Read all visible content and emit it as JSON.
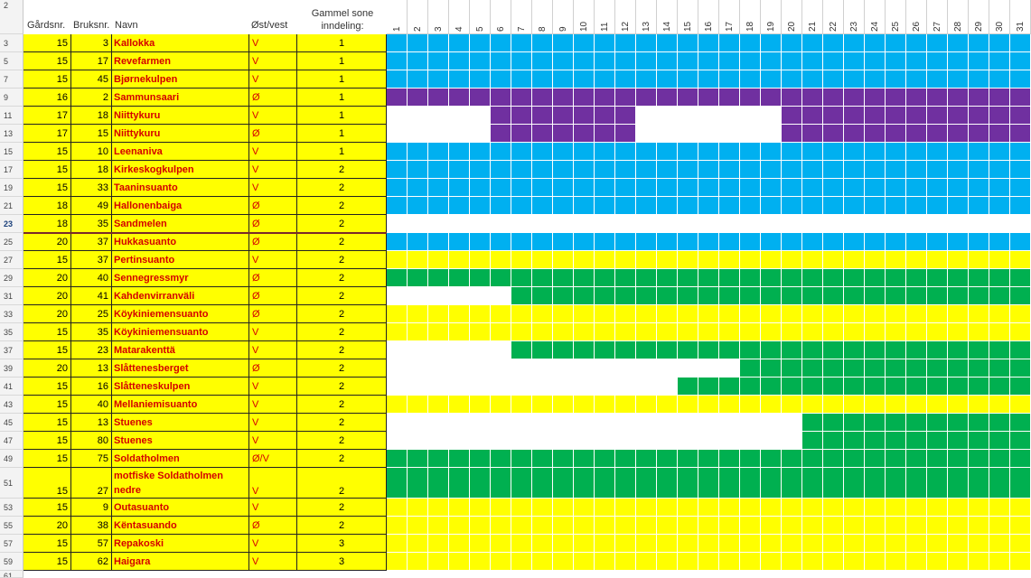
{
  "columns": {
    "farm_no": "Gårdsnr.",
    "use_no": "Bruksnr.",
    "name": "Navn",
    "east_west": "Øst/vest",
    "old_zone": "Gammel sone inndeling:"
  },
  "colors": {
    "yellow": "#ffff00",
    "blue": "#00b0f0",
    "purple": "#7030a0",
    "green": "#00b050",
    "white": "#ffffff"
  },
  "days": [
    "1",
    "2",
    "3",
    "4",
    "5",
    "6",
    "7",
    "8",
    "9",
    "10",
    "11",
    "12",
    "13",
    "14",
    "15",
    "16",
    "17",
    "18",
    "19",
    "20",
    "21",
    "22",
    "23",
    "24",
    "25",
    "26",
    "27",
    "28",
    "29",
    "30",
    "31"
  ],
  "top_row_number": "2",
  "rows": [
    {
      "row": "3",
      "farm": "15",
      "use": "3",
      "name": "Kallokka",
      "ov": "V",
      "zone": "1",
      "color": "blue",
      "from": 1,
      "to": 31
    },
    {
      "row": "5",
      "farm": "15",
      "use": "17",
      "name": "Revefarmen",
      "ov": "V",
      "zone": "1",
      "color": "blue",
      "from": 1,
      "to": 31
    },
    {
      "row": "7",
      "farm": "15",
      "use": "45",
      "name": "Bjørnekulpen",
      "ov": "V",
      "zone": "1",
      "color": "blue",
      "from": 1,
      "to": 31
    },
    {
      "row": "9",
      "farm": "16",
      "use": "2",
      "name": "Sammunsaari",
      "ov": "Ø",
      "zone": "1",
      "color": "purple",
      "from": 1,
      "to": 31
    },
    {
      "row": "11",
      "farm": "17",
      "use": "18",
      "name": "Niittykuru",
      "ov": "V",
      "zone": "1",
      "color": "purple",
      "ranges": [
        [
          6,
          12
        ],
        [
          20,
          31
        ]
      ]
    },
    {
      "row": "13",
      "farm": "17",
      "use": "15",
      "name": "Niittykuru",
      "ov": "Ø",
      "zone": "1",
      "color": "purple",
      "ranges": [
        [
          6,
          12
        ],
        [
          20,
          31
        ]
      ]
    },
    {
      "row": "15",
      "farm": "15",
      "use": "10",
      "name": "Leenaniva",
      "ov": "V",
      "zone": "1",
      "color": "blue",
      "from": 1,
      "to": 31
    },
    {
      "row": "17",
      "farm": "15",
      "use": "18",
      "name": "Kirkeskogkulpen",
      "ov": "V",
      "zone": "2",
      "color": "blue",
      "from": 1,
      "to": 31
    },
    {
      "row": "19",
      "farm": "15",
      "use": "33",
      "name": "Taaninsuanto",
      "ov": "V",
      "zone": "2",
      "color": "blue",
      "from": 1,
      "to": 31
    },
    {
      "row": "21",
      "farm": "18",
      "use": "49",
      "name": "Hallonenbaiga",
      "ov": "Ø",
      "zone": "2",
      "color": "blue",
      "from": 1,
      "to": 31
    },
    {
      "row": "23",
      "farm": "18",
      "use": "35",
      "name": "Sandmelen",
      "ov": "Ø",
      "zone": "2",
      "color": "white",
      "from": 1,
      "to": 31,
      "selected": true
    },
    {
      "row": "25",
      "farm": "20",
      "use": "37",
      "name": "Hukkasuanto",
      "ov": "Ø",
      "zone": "2",
      "color": "blue",
      "from": 1,
      "to": 31
    },
    {
      "row": "27",
      "farm": "15",
      "use": "37",
      "name": "Pertinsuanto",
      "ov": "V",
      "zone": "2",
      "color": "yellow",
      "from": 1,
      "to": 31
    },
    {
      "row": "29",
      "farm": "20",
      "use": "40",
      "name": "Sennegressmyr",
      "ov": "Ø",
      "zone": "2",
      "color": "green",
      "from": 1,
      "to": 31
    },
    {
      "row": "31",
      "farm": "20",
      "use": "41",
      "name": "Kahdenvirranväli",
      "ov": "Ø",
      "zone": "2",
      "color": "green",
      "from": 7,
      "to": 31
    },
    {
      "row": "33",
      "farm": "20",
      "use": "25",
      "name": "Köykiniemensuanto",
      "ov": "Ø",
      "zone": "2",
      "color": "yellow",
      "from": 1,
      "to": 31
    },
    {
      "row": "35",
      "farm": "15",
      "use": "35",
      "name": "Köykiniemensuanto",
      "ov": "V",
      "zone": "2",
      "color": "yellow",
      "from": 1,
      "to": 31
    },
    {
      "row": "37",
      "farm": "15",
      "use": "23",
      "name": "Matarakenttä",
      "ov": "V",
      "zone": "2",
      "color": "green",
      "from": 7,
      "to": 31
    },
    {
      "row": "39",
      "farm": "20",
      "use": "13",
      "name": "Slåttenesberget",
      "ov": "Ø",
      "zone": "2",
      "color": "green",
      "from": 18,
      "to": 31
    },
    {
      "row": "41",
      "farm": "15",
      "use": "16",
      "name": "Slåtteneskulpen",
      "ov": "V",
      "zone": "2",
      "color": "green",
      "from": 15,
      "to": 31
    },
    {
      "row": "43",
      "farm": "15",
      "use": "40",
      "name": "Mellaniemisuanto",
      "ov": "V",
      "zone": "2",
      "color": "yellow",
      "from": 1,
      "to": 31
    },
    {
      "row": "45",
      "farm": "15",
      "use": "13",
      "name": "Stuenes",
      "ov": "V",
      "zone": "2",
      "color": "green",
      "from": 21,
      "to": 31
    },
    {
      "row": "47",
      "farm": "15",
      "use": "80",
      "name": "Stuenes",
      "ov": "V",
      "zone": "2",
      "color": "green",
      "from": 21,
      "to": 31
    },
    {
      "row": "49",
      "farm": "15",
      "use": "75",
      "name": "Soldatholmen",
      "ov": "Ø/V",
      "zone": "2",
      "color": "green",
      "from": 1,
      "to": 31
    },
    {
      "row": "51",
      "farm": "15",
      "use": "27",
      "name": "motfiske Soldatholmen nedre",
      "ov": "V",
      "zone": "2",
      "color": "green",
      "from": 1,
      "to": 31,
      "tall": true
    },
    {
      "row": "53",
      "farm": "15",
      "use": "9",
      "name": "Outasuanto",
      "ov": "V",
      "zone": "2",
      "color": "yellow",
      "from": 1,
      "to": 31
    },
    {
      "row": "55",
      "farm": "20",
      "use": "38",
      "name": "Kёntasuando",
      "ov": "Ø",
      "zone": "2",
      "color": "yellow",
      "from": 1,
      "to": 31
    },
    {
      "row": "57",
      "farm": "15",
      "use": "57",
      "name": "Repakoski",
      "ov": "V",
      "zone": "3",
      "color": "yellow",
      "from": 1,
      "to": 31
    },
    {
      "row": "59",
      "farm": "15",
      "use": "62",
      "name": "Haigara",
      "ov": "V",
      "zone": "3",
      "color": "yellow",
      "from": 1,
      "to": 31
    }
  ],
  "last_row_number": "61"
}
